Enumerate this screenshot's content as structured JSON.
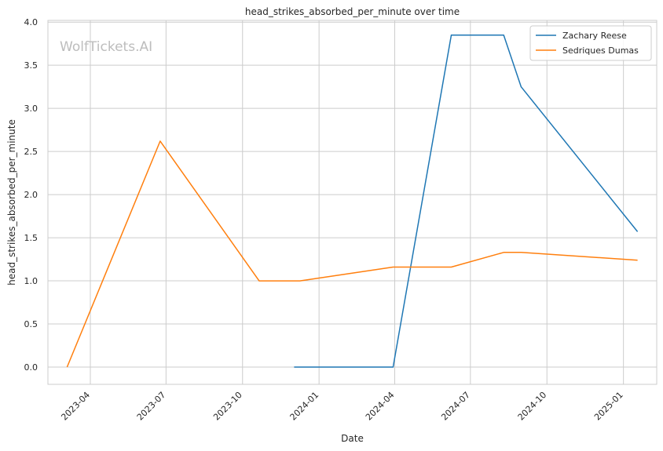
{
  "chart_data": {
    "type": "line",
    "title": "head_strikes_absorbed_per_minute over time",
    "xlabel": "Date",
    "ylabel": "head_strikes_absorbed_per_minute",
    "watermark": "WolfTickets.AI",
    "xlim": [
      "2023-02-09",
      "2025-02-10"
    ],
    "ylim": [
      -0.2,
      4.02
    ],
    "x_ticks": [
      "2023-04-01",
      "2023-07-01",
      "2023-10-01",
      "2024-01-01",
      "2024-04-01",
      "2024-07-01",
      "2024-10-01",
      "2025-01-01"
    ],
    "x_tick_labels": [
      "2023-04",
      "2023-07",
      "2023-10",
      "2024-01",
      "2024-04",
      "2024-07",
      "2024-10",
      "2025-01"
    ],
    "y_ticks": [
      0.0,
      0.5,
      1.0,
      1.5,
      2.0,
      2.5,
      3.0,
      3.5,
      4.0
    ],
    "y_tick_labels": [
      "0.0",
      "0.5",
      "1.0",
      "1.5",
      "2.0",
      "2.5",
      "3.0",
      "3.5",
      "4.0"
    ],
    "grid": true,
    "legend_position": "top-right",
    "series": [
      {
        "name": "Zachary Reese",
        "color": "#1f77b4",
        "points": [
          {
            "x": "2023-12-02",
            "y": 0.0
          },
          {
            "x": "2024-03-30",
            "y": 0.0
          },
          {
            "x": "2024-06-08",
            "y": 3.85
          },
          {
            "x": "2024-08-10",
            "y": 3.85
          },
          {
            "x": "2024-08-31",
            "y": 3.25
          },
          {
            "x": "2025-01-18",
            "y": 1.57
          }
        ]
      },
      {
        "name": "Sedriques Dumas",
        "color": "#ff7f0e",
        "points": [
          {
            "x": "2023-03-04",
            "y": 0.0
          },
          {
            "x": "2023-06-24",
            "y": 2.62
          },
          {
            "x": "2023-10-21",
            "y": 1.0
          },
          {
            "x": "2023-12-09",
            "y": 1.0
          },
          {
            "x": "2024-03-30",
            "y": 1.16
          },
          {
            "x": "2024-06-08",
            "y": 1.16
          },
          {
            "x": "2024-08-10",
            "y": 1.33
          },
          {
            "x": "2024-08-31",
            "y": 1.33
          },
          {
            "x": "2025-01-18",
            "y": 1.24
          }
        ]
      }
    ]
  }
}
